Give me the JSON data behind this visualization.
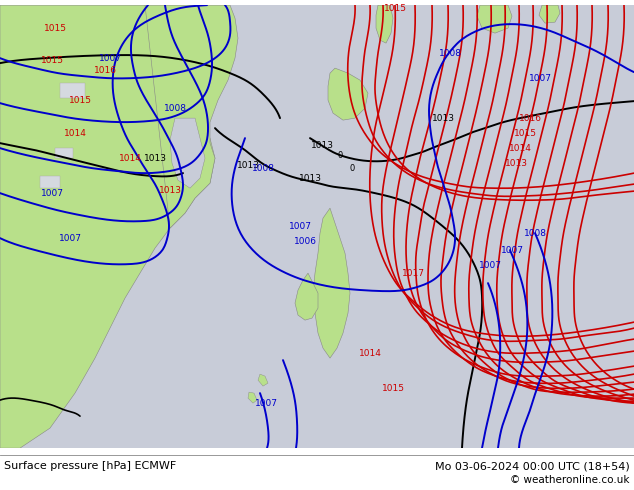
{
  "title_left": "Surface pressure [hPa] ECMWF",
  "title_right": "Mo 03-06-2024 00:00 UTC (18+54)",
  "copyright": "© weatheronline.co.uk",
  "land_color": "#b8e08a",
  "sea_color": "#c8ccd8",
  "footer_bg": "#ffffff",
  "figsize": [
    6.34,
    4.9
  ],
  "dpi": 100
}
